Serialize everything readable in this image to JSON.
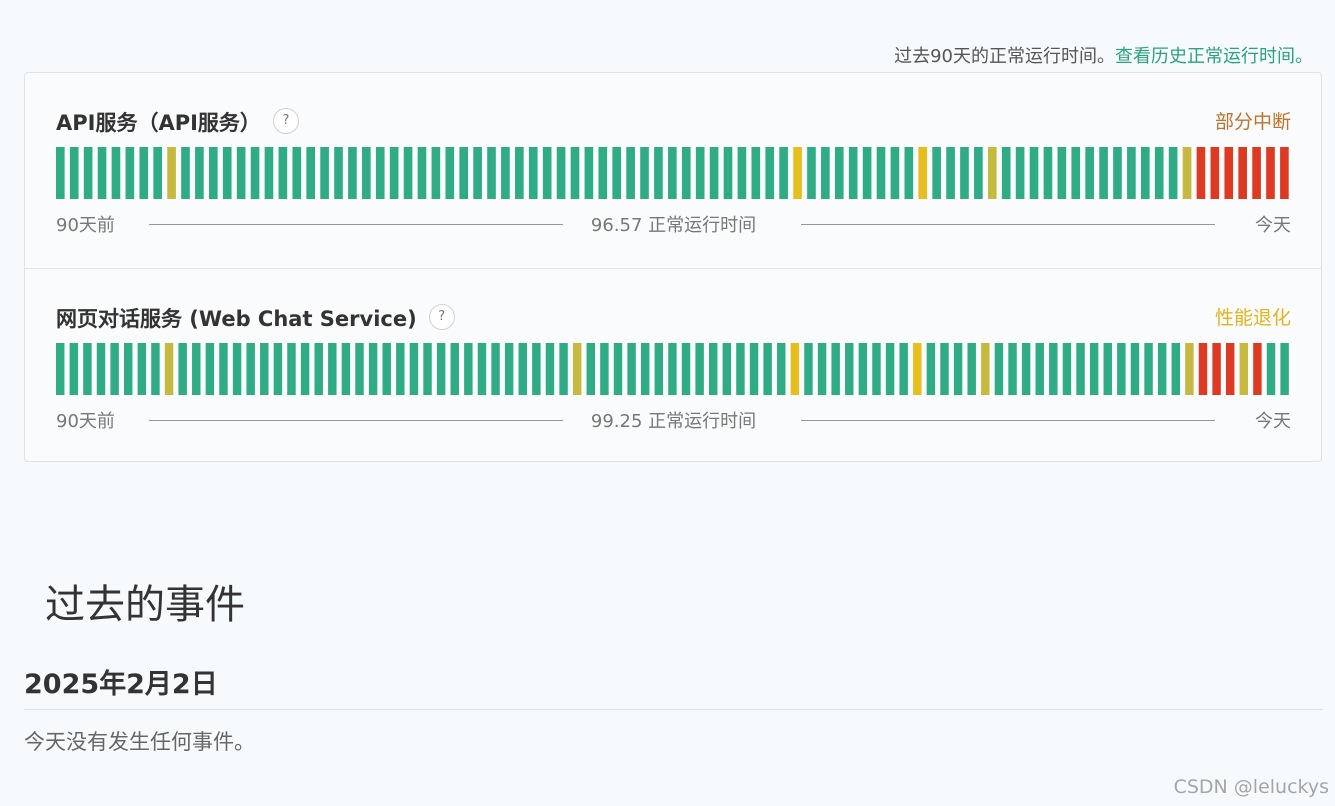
{
  "header": {
    "uptime_note": "过去90天的正常运行时间。",
    "history_link": "查看历史正常运行时间。"
  },
  "colors": {
    "operational": "#2fab85",
    "minor": "#c5b93f",
    "degraded": "#e6be1e",
    "major": "#dc3a22",
    "partial_outage_text": "#c0732a",
    "degraded_text": "#e3b41b"
  },
  "components": [
    {
      "name": "API服务（API服务）",
      "help": "?",
      "status": "部分中断",
      "status_color": "#c0732a",
      "days": "ggggggggoggggggggggggggggggggggggggggggggggggggggggggwggggggggwggggogggggggggggggorrrrrrr",
      "left_label": "90天前",
      "uptime_label": "96.57 正常运行时间",
      "right_label": "今天"
    },
    {
      "name": "网页对话服务 (Web Chat Service)",
      "help": "?",
      "status": "性能退化",
      "status_color": "#e3b41b",
      "days": "ggggggggogggggggggggggggggggggggggggggogggggggggggggggwggggggggwggggoggggggggggggggorrrorgg",
      "left_label": "90天前",
      "uptime_label": "99.25 正常运行时间",
      "right_label": "今天"
    }
  ],
  "past_incidents": {
    "title": "过去的事件",
    "date": "2025年2月2日",
    "message": "今天没有发生任何事件。"
  },
  "watermark": "CSDN @leluckys"
}
